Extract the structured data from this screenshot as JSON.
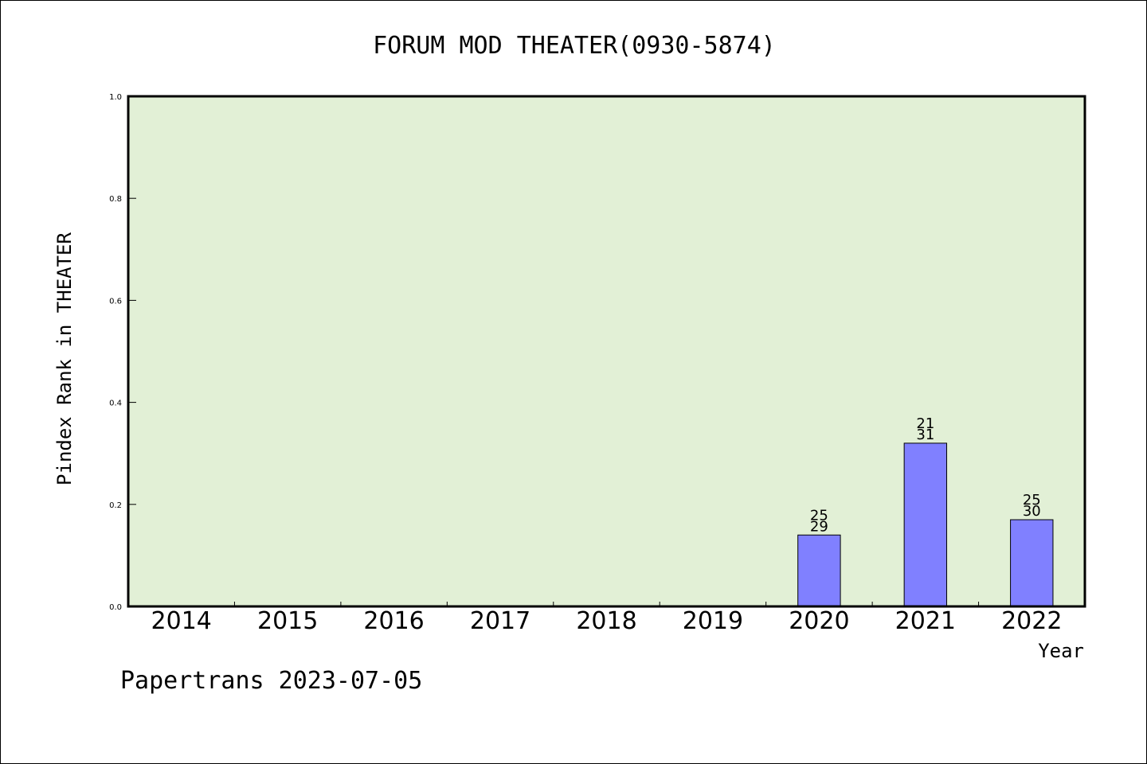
{
  "chart_data": {
    "type": "bar",
    "title": "FORUM MOD THEATER(0930-5874)",
    "xlabel": "Year",
    "ylabel": "Pindex Rank in THEATER",
    "categories": [
      "2014",
      "2015",
      "2016",
      "2017",
      "2018",
      "2019",
      "2020",
      "2021",
      "2022"
    ],
    "values": [
      null,
      null,
      null,
      null,
      null,
      null,
      0.14,
      0.32,
      0.17
    ],
    "bar_labels": [
      null,
      null,
      null,
      null,
      null,
      null,
      {
        "top": "25",
        "bottom": "29"
      },
      {
        "top": "21",
        "bottom": "31"
      },
      {
        "top": "25",
        "bottom": "30"
      }
    ],
    "ylim": [
      0,
      1.0
    ],
    "yticks": [
      "0.0",
      "0.2",
      "0.4",
      "0.6",
      "0.8",
      "1.0"
    ],
    "grid": false,
    "colors": {
      "plot_background": "#e2f0d6",
      "bar_fill": "#8080ff",
      "bar_stroke": "#000000"
    }
  },
  "footer": "Papertrans 2023-07-05"
}
